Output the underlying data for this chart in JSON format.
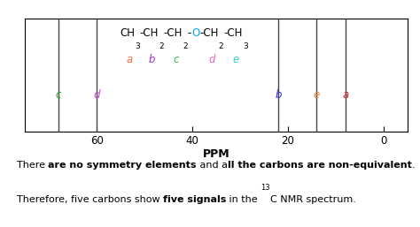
{
  "xlim": [
    75,
    -5
  ],
  "ylim": [
    0,
    1
  ],
  "xticks": [
    60,
    40,
    20,
    0
  ],
  "xlabel": "PPM",
  "peaks": [
    {
      "ppm": 68,
      "label": "c",
      "label_color": "#22aa22"
    },
    {
      "ppm": 60,
      "label": "d",
      "label_color": "#cc44cc"
    },
    {
      "ppm": 22,
      "label": "b",
      "label_color": "#3333dd"
    },
    {
      "ppm": 14,
      "label": "e",
      "label_color": "#dd8844"
    },
    {
      "ppm": 8,
      "label": "a",
      "label_color": "#cc2222"
    }
  ],
  "mol_parts": [
    {
      "text": "CH",
      "color": "#000000",
      "sub": false
    },
    {
      "text": "3",
      "color": "#000000",
      "sub": true
    },
    {
      "text": "-CH",
      "color": "#000000",
      "sub": false
    },
    {
      "text": "2",
      "color": "#000000",
      "sub": true
    },
    {
      "text": "-CH",
      "color": "#000000",
      "sub": false
    },
    {
      "text": "2",
      "color": "#000000",
      "sub": true
    },
    {
      "text": "-",
      "color": "#000000",
      "sub": false
    },
    {
      "text": "O",
      "color": "#00aaff",
      "sub": false
    },
    {
      "text": "-CH",
      "color": "#000000",
      "sub": false
    },
    {
      "text": "2",
      "color": "#000000",
      "sub": true
    },
    {
      "text": "-CH",
      "color": "#000000",
      "sub": false
    },
    {
      "text": "3",
      "color": "#000000",
      "sub": true
    }
  ],
  "label_letters": [
    {
      "letter": "a",
      "color": "#ff6633"
    },
    {
      "letter": "b",
      "color": "#9933cc"
    },
    {
      "letter": "c",
      "color": "#33bb55"
    },
    {
      "letter": "d",
      "color": "#ee66bb"
    },
    {
      "letter": "e",
      "color": "#33cccc"
    }
  ],
  "background_color": "#ffffff",
  "peak_line_color": "#444444",
  "fontsize": 8.5,
  "mol_fontsize": 8.5,
  "text_fontsize": 8.0
}
